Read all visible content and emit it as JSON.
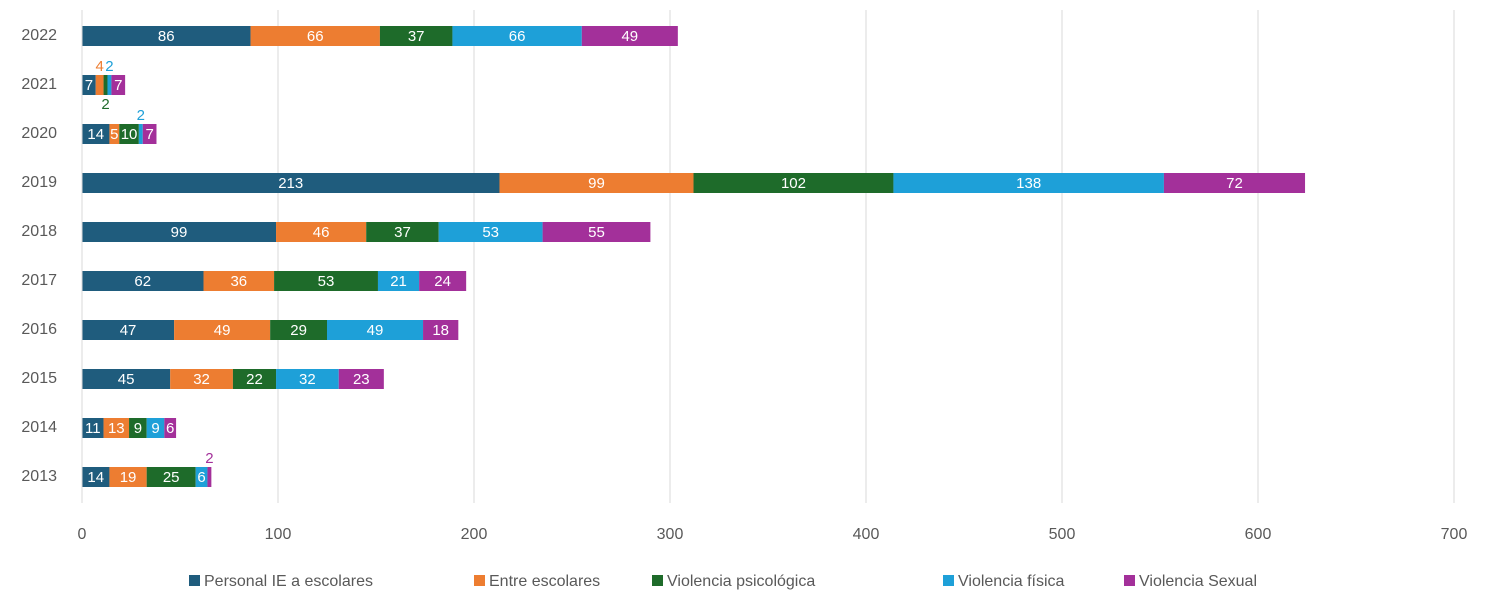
{
  "chart_data": {
    "type": "stacked-bar-horizontal",
    "categories": [
      "2022",
      "2021",
      "2020",
      "2019",
      "2018",
      "2017",
      "2016",
      "2015",
      "2014",
      "2013"
    ],
    "series": [
      {
        "name": "Personal IE a escolares",
        "color": "#1f5c7d",
        "values": [
          86,
          7,
          14,
          213,
          99,
          62,
          47,
          45,
          11,
          14
        ]
      },
      {
        "name": "Entre escolares",
        "color": "#ed7d31",
        "values": [
          66,
          4,
          5,
          99,
          46,
          36,
          49,
          32,
          13,
          19
        ]
      },
      {
        "name": "Violencia psicológica",
        "color": "#1e6b2a",
        "values": [
          37,
          2,
          10,
          102,
          37,
          53,
          29,
          22,
          9,
          25
        ]
      },
      {
        "name": "Violencia física",
        "color": "#1ea0d8",
        "values": [
          66,
          2,
          2,
          138,
          53,
          21,
          49,
          32,
          9,
          6
        ]
      },
      {
        "name": "Violencia Sexual",
        "color": "#a3309a",
        "values": [
          49,
          7,
          7,
          72,
          55,
          24,
          18,
          23,
          6,
          2
        ]
      }
    ],
    "xlim": [
      0,
      700
    ],
    "xticks": [
      0,
      100,
      200,
      300,
      400,
      500,
      600,
      700
    ],
    "grid": true,
    "legend": "bottom"
  }
}
